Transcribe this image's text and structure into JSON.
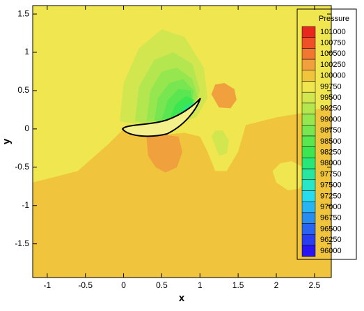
{
  "chart_data": {
    "type": "contour",
    "xlabel": "x",
    "ylabel": "y",
    "xlim": [
      -1.19,
      2.72
    ],
    "ylim": [
      -1.94,
      1.61
    ],
    "xticks": [
      -1,
      -0.5,
      0,
      0.5,
      1,
      1.5,
      2,
      2.5
    ],
    "yticks": [
      -1.5,
      -1,
      -0.5,
      0,
      0.5,
      1,
      1.5
    ],
    "legend_title": "Pressure",
    "levels": [
      101000,
      100750,
      100500,
      100250,
      100000,
      99750,
      99500,
      99250,
      99000,
      98750,
      98500,
      98250,
      98000,
      97750,
      97500,
      97250,
      97000,
      96750,
      96500,
      96250,
      96000
    ],
    "colors": [
      "#e8281e",
      "#ee5028",
      "#f27832",
      "#f0a03c",
      "#f0c43c",
      "#f0e650",
      "#d2e650",
      "#b4e650",
      "#96e650",
      "#78e650",
      "#5ae650",
      "#3ce650",
      "#28e678",
      "#28e6a0",
      "#28e6c8",
      "#28dcf0",
      "#28b4f0",
      "#288cf0",
      "#2864f0",
      "#283cf0",
      "#2814f0"
    ],
    "regions": [
      {
        "level": 99750,
        "x": [
          -1.19,
          2.72,
          2.72,
          -1.19
        ],
        "y": [
          1.61,
          1.61,
          -1.94,
          -1.94
        ]
      },
      {
        "level": 100000,
        "x": [
          -1.19,
          -0.6,
          -0.2,
          0,
          0.3,
          0.8,
          1.0,
          1.1,
          1.2,
          1.35,
          1.5,
          1.6,
          1.8,
          2.0,
          2.3,
          2.72,
          2.72,
          -1.19
        ],
        "y": [
          -0.7,
          -0.55,
          -0.2,
          0,
          -0.1,
          -0.05,
          -0.1,
          -0.3,
          -0.55,
          -0.55,
          -0.3,
          0.05,
          0.1,
          0.15,
          0.2,
          0.3,
          -1.94,
          -1.94
        ]
      },
      {
        "level": 99750,
        "x": [
          1.95,
          2.05,
          2.2,
          2.35,
          2.4,
          2.3,
          2.15,
          2.0
        ],
        "y": [
          -0.55,
          -0.45,
          -0.42,
          -0.5,
          -0.65,
          -0.78,
          -0.8,
          -0.7
        ]
      },
      {
        "level": 100250,
        "x": [
          1.15,
          1.2,
          1.32,
          1.45,
          1.48,
          1.4,
          1.25
        ],
        "y": [
          0.45,
          0.58,
          0.6,
          0.52,
          0.38,
          0.27,
          0.28
        ]
      },
      {
        "level": 100250,
        "x": [
          0.3,
          0.32,
          0.42,
          0.55,
          0.7,
          0.77,
          0.72,
          0.55
        ],
        "y": [
          -0.1,
          -0.35,
          -0.5,
          -0.57,
          -0.5,
          -0.3,
          -0.1,
          -0.08
        ]
      },
      {
        "level": 99500,
        "x": [
          1.15,
          1.2,
          1.3,
          1.38,
          1.35,
          1.25
        ],
        "y": [
          -0.1,
          -0.02,
          -0.02,
          -0.15,
          -0.32,
          -0.35
        ]
      },
      {
        "level": 99500,
        "x": [
          -0.05,
          0.0,
          0.2,
          0.5,
          0.8,
          1.05,
          1.1,
          0.95,
          0.5
        ],
        "y": [
          0.1,
          0.6,
          1.05,
          1.3,
          1.2,
          0.8,
          0.4,
          0.15,
          0.0
        ]
      },
      {
        "level": 99250,
        "x": [
          0.15,
          0.2,
          0.4,
          0.65,
          0.9,
          1.0,
          0.9,
          0.5
        ],
        "y": [
          0.1,
          0.55,
          0.9,
          1.0,
          0.85,
          0.5,
          0.2,
          0.05
        ]
      },
      {
        "level": 99000,
        "x": [
          0.3,
          0.35,
          0.5,
          0.7,
          0.9,
          0.97,
          0.8
        ],
        "y": [
          0.1,
          0.5,
          0.75,
          0.8,
          0.65,
          0.42,
          0.15
        ]
      },
      {
        "level": 98750,
        "x": [
          0.4,
          0.45,
          0.6,
          0.78,
          0.92,
          0.9,
          0.7
        ],
        "y": [
          0.1,
          0.4,
          0.6,
          0.65,
          0.5,
          0.3,
          0.1
        ]
      },
      {
        "level": 98500,
        "x": [
          0.5,
          0.58,
          0.72,
          0.88,
          0.9,
          0.75
        ],
        "y": [
          0.12,
          0.38,
          0.52,
          0.5,
          0.35,
          0.15
        ]
      },
      {
        "level": 98250,
        "x": [
          0.6,
          0.68,
          0.82,
          0.92,
          0.8
        ],
        "y": [
          0.13,
          0.32,
          0.43,
          0.38,
          0.18
        ]
      },
      {
        "level": 98000,
        "x": [
          0.7,
          0.8,
          0.93,
          0.85
        ],
        "y": [
          0.16,
          0.3,
          0.36,
          0.2
        ]
      },
      {
        "level": 97750,
        "x": [
          0.8,
          0.9,
          0.95,
          0.88
        ],
        "y": [
          0.2,
          0.3,
          0.35,
          0.24
        ]
      }
    ]
  }
}
